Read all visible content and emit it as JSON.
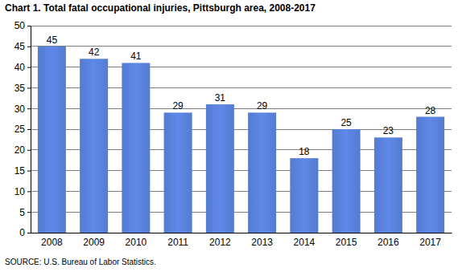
{
  "chart_data": {
    "type": "bar",
    "title": "Chart 1. Total fatal occupational injuries, Pittsburgh area, 2008-2017",
    "source": "SOURCE: U.S. Bureau of Labor Statistics.",
    "categories": [
      "2008",
      "2009",
      "2010",
      "2011",
      "2012",
      "2013",
      "2014",
      "2015",
      "2016",
      "2017"
    ],
    "values": [
      45,
      42,
      41,
      29,
      31,
      29,
      18,
      25,
      23,
      28
    ],
    "color": "#5a82dc",
    "ylim": [
      0,
      50
    ],
    "yticks": [
      0,
      5,
      10,
      15,
      20,
      25,
      30,
      35,
      40,
      45,
      50
    ],
    "grid": true,
    "data_labels": true
  }
}
